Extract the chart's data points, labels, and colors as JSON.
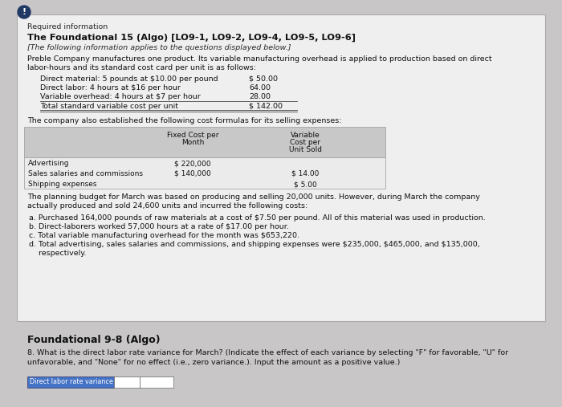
{
  "outer_bg": "#c8c6c6",
  "box_bg": "#f0efef",
  "box_border": "#aaaaaa",
  "title_required": "Required information",
  "title_main": "The Foundational 15 (Algo) [LO9-1, LO9-2, LO9-4, LO9-5, LO9-6]",
  "subtitle_italic": "[The following information applies to the questions displayed below.]",
  "intro_text": "Preble Company manufactures one product. Its variable manufacturing overhead is applied to production based on direct\nlabor-hours and its standard cost card per unit is as follows:",
  "cost_lines": [
    [
      "Direct material: 5 pounds at $10.00 per pound",
      "$ 50.00"
    ],
    [
      "Direct labor: 4 hours at $16 per hour",
      "64.00"
    ],
    [
      "Variable overhead: 4 hours at $7 per hour",
      "28.00"
    ],
    [
      "Total standard variable cost per unit",
      "$ 142.00"
    ]
  ],
  "selling_intro": "The company also established the following cost formulas for its selling expenses:",
  "table_rows": [
    [
      "Advertising",
      "$ 220,000",
      ""
    ],
    [
      "Sales salaries and commissions",
      "$ 140,000",
      "$ 14.00"
    ],
    [
      "Shipping expenses",
      "",
      "$ 5.00"
    ]
  ],
  "planning_text": "The planning budget for March was based on producing and selling 20,000 units. However, during March the company\nactually produced and sold 24,600 units and incurred the following costs:",
  "cost_items": [
    "a. Purchased 164,000 pounds of raw materials at a cost of $7.50 per pound. All of this material was used in production.",
    "b. Direct-laborers worked 57,000 hours at a rate of $17.00 per hour.",
    "c. Total variable manufacturing overhead for the month was $653,220.",
    "d. Total advertising, sales salaries and commissions, and shipping expenses were $235,000, $465,000, and $135,000,",
    "    respectively."
  ],
  "section_title": "Foundational 9-8 (Algo)",
  "question_text": "8. What is the direct labor rate variance for March? (Indicate the effect of each variance by selecting \"F\" for favorable, \"U\" for\nunfavorable, and \"None\" for no effect (i.e., zero variance.). Input the amount as a positive value.)",
  "input_label": "Direct labor rate variance",
  "input_bg": "#4472c4",
  "input_text_color": "#ffffff",
  "circle_color": "#1f3864",
  "table_header_bg": "#c8c8c8",
  "table_row_bg": "#ebebeb"
}
